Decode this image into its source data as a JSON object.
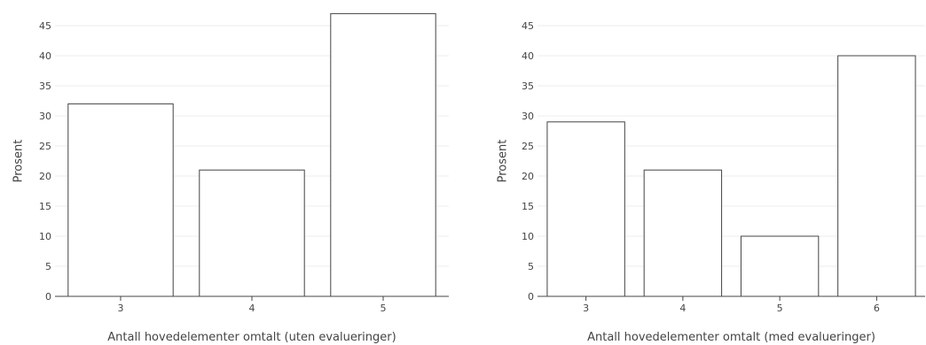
{
  "chart_data": [
    {
      "type": "bar",
      "categories": [
        "3",
        "4",
        "5"
      ],
      "values": [
        32,
        21,
        47
      ],
      "xlabel": "Antall hovedelementer omtalt (uten evalueringer)",
      "ylabel": "Prosent",
      "ylim": [
        0,
        45
      ],
      "yticks": [
        0,
        5,
        10,
        15,
        20,
        25,
        30,
        35,
        40,
        45
      ],
      "grid": true,
      "bar_fill": "#ffffff",
      "bar_stroke": "#444444"
    },
    {
      "type": "bar",
      "categories": [
        "3",
        "4",
        "5",
        "6"
      ],
      "values": [
        29,
        21,
        10,
        40
      ],
      "xlabel": "Antall hovedelementer omtalt (med evalueringer)",
      "ylabel": "Prosent",
      "ylim": [
        0,
        45
      ],
      "yticks": [
        0,
        5,
        10,
        15,
        20,
        25,
        30,
        35,
        40,
        45
      ],
      "grid": true,
      "bar_fill": "#ffffff",
      "bar_stroke": "#444444"
    }
  ]
}
